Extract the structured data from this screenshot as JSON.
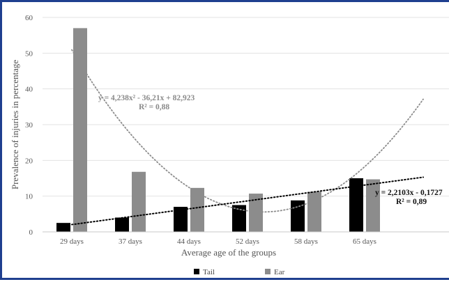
{
  "chart_data": {
    "type": "bar",
    "xlabel": "Average age of the groups",
    "ylabel": "Prevalence of injuries in percentage",
    "ylim": [
      0,
      60
    ],
    "yticks": [
      0,
      10,
      20,
      30,
      40,
      50,
      60
    ],
    "grid": "horizontal",
    "legend_position": "bottom",
    "categories": [
      "29 days",
      "37 days",
      "44 days",
      "52 days",
      "58 days",
      "65 days"
    ],
    "series": [
      {
        "name": "Tail",
        "color": "#000000",
        "values": [
          2.5,
          4.0,
          7.0,
          7.5,
          8.8,
          15.0
        ]
      },
      {
        "name": "Ear",
        "color": "#8c8c8c",
        "values": [
          57.0,
          16.8,
          12.3,
          10.7,
          11.2,
          14.7
        ]
      }
    ],
    "trendlines": [
      {
        "series": "Ear",
        "kind": "polynomial",
        "color": "#8c8c8c",
        "equation": "y = 4,238x² - 36,21x + 82,923",
        "r2": "R² = 0,88",
        "coefficients": [
          4.238,
          -36.21,
          82.923
        ],
        "x_range": [
          1,
          7
        ]
      },
      {
        "series": "Tail",
        "kind": "linear",
        "color": "#000000",
        "equation": "y = 2,2103x - 0,1727",
        "r2": "R² = 0,89",
        "coefficients": [
          2.2103,
          -0.1727
        ],
        "x_range": [
          1,
          7
        ]
      }
    ]
  }
}
